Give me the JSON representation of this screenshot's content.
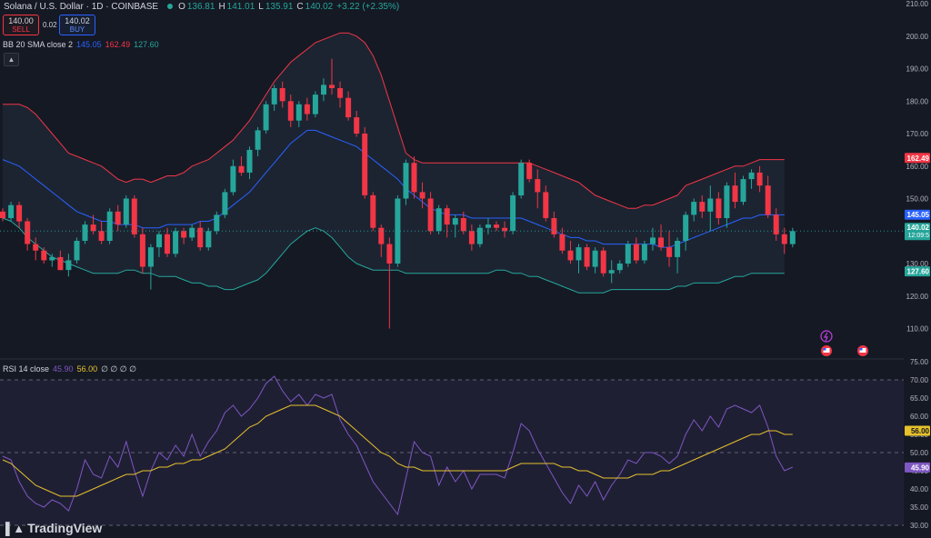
{
  "header": {
    "symbol_line": "Solana / U.S. Dollar · 1D · COINBASE",
    "o_label": "O",
    "o_value": "136.81",
    "h_label": "H",
    "h_value": "141.01",
    "l_label": "L",
    "l_value": "135.91",
    "c_label": "C",
    "c_value": "140.02",
    "change": "+3.22 (+2.35%)"
  },
  "trade": {
    "sell_price": "140.00",
    "sell_label": "SELL",
    "spread": "0.02",
    "buy_price": "140.02",
    "buy_label": "BUY"
  },
  "bb": {
    "label": "BB 20 SMA close 2",
    "basis": "145.05",
    "upper": "162.49",
    "lower": "127.60"
  },
  "rsi": {
    "label": "RSI 14 close",
    "value": "45.90",
    "ma": "56.00",
    "extra": "∅ ∅ ∅ ∅"
  },
  "logo": {
    "text": "TradingView"
  },
  "icons": [
    "flash-icon",
    "flag-icon"
  ],
  "colors": {
    "up": "#26a69a",
    "down": "#f23645",
    "basis": "#2962ff",
    "upper": "#f23645",
    "lower": "#26a69a",
    "rsi": "#7e57c2",
    "rsi_ma": "#e6c12b",
    "price": "#26a69a",
    "bg": "#151924"
  },
  "chart_data": [
    {
      "type": "candlestick",
      "title": "Solana / U.S. Dollar · 1D · COINBASE",
      "ylim": [
        105,
        210
      ],
      "y_ticks": [
        110,
        120,
        130,
        140,
        150,
        160,
        170,
        180,
        190,
        200,
        210
      ],
      "last_price": 140.02,
      "countdown": "12:09:5",
      "candles": [
        [
          146,
          147,
          143,
          144
        ],
        [
          144,
          149,
          143,
          148
        ],
        [
          148,
          149,
          141,
          143
        ],
        [
          143,
          144,
          134,
          136
        ],
        [
          136,
          138,
          131,
          134
        ],
        [
          134,
          135,
          130,
          131
        ],
        [
          131,
          133,
          129,
          132
        ],
        [
          132,
          134,
          128,
          128
        ],
        [
          128,
          133,
          126,
          131
        ],
        [
          131,
          138,
          130,
          137
        ],
        [
          137,
          143,
          136,
          142
        ],
        [
          142,
          145,
          139,
          140
        ],
        [
          140,
          143,
          136,
          137
        ],
        [
          137,
          147,
          136,
          146
        ],
        [
          146,
          148,
          140,
          142
        ],
        [
          142,
          151,
          141,
          150
        ],
        [
          150,
          151,
          138,
          139
        ],
        [
          139,
          141,
          127,
          129
        ],
        [
          129,
          136,
          122,
          135
        ],
        [
          135,
          140,
          132,
          139
        ],
        [
          139,
          141,
          132,
          133
        ],
        [
          133,
          141,
          132,
          140
        ],
        [
          140,
          141,
          136,
          138
        ],
        [
          138,
          142,
          137,
          141
        ],
        [
          141,
          143,
          134,
          135
        ],
        [
          135,
          141,
          134,
          140
        ],
        [
          140,
          146,
          139,
          145
        ],
        [
          145,
          153,
          144,
          152
        ],
        [
          152,
          162,
          151,
          160
        ],
        [
          160,
          163,
          157,
          158
        ],
        [
          158,
          166,
          156,
          165
        ],
        [
          165,
          172,
          163,
          171
        ],
        [
          171,
          180,
          170,
          179
        ],
        [
          179,
          185,
          177,
          184
        ],
        [
          184,
          186,
          178,
          180
        ],
        [
          180,
          182,
          172,
          174
        ],
        [
          174,
          180,
          172,
          179
        ],
        [
          179,
          181,
          174,
          176
        ],
        [
          176,
          183,
          175,
          182
        ],
        [
          182,
          187,
          180,
          185
        ],
        [
          185,
          193,
          182,
          184
        ],
        [
          184,
          186,
          178,
          181
        ],
        [
          181,
          183,
          174,
          175
        ],
        [
          175,
          177,
          169,
          170
        ],
        [
          170,
          172,
          150,
          151
        ],
        [
          151,
          152,
          140,
          141
        ],
        [
          141,
          142,
          132,
          136
        ],
        [
          136,
          138,
          110,
          130
        ],
        [
          130,
          151,
          129,
          150
        ],
        [
          150,
          162,
          148,
          161
        ],
        [
          161,
          163,
          150,
          152
        ],
        [
          152,
          155,
          147,
          150
        ],
        [
          150,
          152,
          139,
          140
        ],
        [
          140,
          148,
          139,
          147
        ],
        [
          147,
          148,
          138,
          142
        ],
        [
          142,
          145,
          138,
          144
        ],
        [
          144,
          146,
          139,
          140
        ],
        [
          140,
          142,
          134,
          136
        ],
        [
          136,
          142,
          135,
          141
        ],
        [
          141,
          144,
          139,
          142
        ],
        [
          142,
          143,
          140,
          141
        ],
        [
          141,
          143,
          138,
          140
        ],
        [
          140,
          152,
          139,
          151
        ],
        [
          151,
          162,
          150,
          161
        ],
        [
          161,
          162,
          155,
          156
        ],
        [
          156,
          159,
          147,
          152
        ],
        [
          152,
          154,
          143,
          144
        ],
        [
          144,
          146,
          138,
          139
        ],
        [
          139,
          141,
          133,
          134
        ],
        [
          134,
          137,
          130,
          131
        ],
        [
          131,
          136,
          127,
          135
        ],
        [
          135,
          136,
          128,
          129
        ],
        [
          129,
          135,
          127,
          134
        ],
        [
          134,
          135,
          126,
          127
        ],
        [
          127,
          131,
          124,
          128
        ],
        [
          128,
          131,
          127,
          130
        ],
        [
          130,
          137,
          129,
          136
        ],
        [
          136,
          138,
          130,
          131
        ],
        [
          131,
          137,
          130,
          136
        ],
        [
          136,
          141,
          134,
          138
        ],
        [
          138,
          142,
          134,
          135
        ],
        [
          135,
          140,
          129,
          132
        ],
        [
          132,
          138,
          127,
          137
        ],
        [
          137,
          146,
          134,
          145
        ],
        [
          145,
          150,
          143,
          149
        ],
        [
          149,
          151,
          144,
          146
        ],
        [
          146,
          154,
          140,
          150
        ],
        [
          150,
          152,
          142,
          144
        ],
        [
          144,
          155,
          141,
          154
        ],
        [
          154,
          158,
          147,
          149
        ],
        [
          149,
          157,
          148,
          156
        ],
        [
          156,
          159,
          153,
          158
        ],
        [
          158,
          160,
          152,
          154
        ],
        [
          154,
          157,
          144,
          145
        ],
        [
          145,
          147,
          137,
          139
        ],
        [
          139,
          141,
          133,
          136
        ],
        [
          136,
          141,
          135,
          140
        ]
      ],
      "series": [
        {
          "name": "upper",
          "values": [
            179,
            179,
            179,
            178,
            176,
            173,
            170,
            167,
            164,
            163,
            162,
            161,
            160,
            158,
            156,
            155,
            156,
            156,
            155,
            156,
            157,
            157,
            158,
            160,
            161,
            162,
            164,
            166,
            168,
            171,
            174,
            178,
            182,
            186,
            189,
            192,
            194,
            196,
            198,
            199,
            200,
            201,
            201,
            200,
            198,
            194,
            188,
            180,
            172,
            164,
            162,
            161,
            161,
            161,
            161,
            161,
            161,
            161,
            161,
            161,
            161,
            161,
            161,
            161,
            161,
            160,
            159,
            158,
            157,
            156,
            155,
            153,
            151,
            150,
            149,
            148,
            147,
            147,
            148,
            148,
            149,
            150,
            151,
            154,
            155,
            156,
            157,
            158,
            159,
            160,
            160,
            161,
            162,
            162,
            162,
            162
          ]
        },
        {
          "name": "basis",
          "values": [
            162,
            161,
            160,
            158,
            156,
            154,
            152,
            150,
            148,
            146,
            145,
            144,
            143,
            143,
            142,
            142,
            142,
            141,
            141,
            141,
            142,
            142,
            142,
            142,
            143,
            143,
            144,
            146,
            148,
            150,
            152,
            155,
            158,
            161,
            164,
            167,
            169,
            171,
            171,
            170,
            169,
            168,
            167,
            166,
            164,
            162,
            160,
            158,
            156,
            153,
            151,
            149,
            147,
            146,
            145,
            145,
            145,
            144,
            144,
            144,
            144,
            144,
            144,
            144,
            143,
            142,
            141,
            140,
            139,
            138,
            138,
            137,
            137,
            136,
            136,
            136,
            136,
            136,
            136,
            136,
            135,
            135,
            136,
            137,
            138,
            139,
            140,
            141,
            142,
            143,
            144,
            144,
            145,
            145,
            145,
            145
          ]
        },
        {
          "name": "lower",
          "values": [
            144,
            143,
            141,
            138,
            136,
            134,
            132,
            131,
            130,
            129,
            128,
            127,
            127,
            127,
            127,
            128,
            128,
            127,
            127,
            126,
            126,
            126,
            125,
            124,
            124,
            123,
            123,
            122,
            122,
            123,
            124,
            125,
            127,
            130,
            133,
            136,
            138,
            140,
            141,
            140,
            138,
            135,
            132,
            130,
            129,
            128,
            128,
            128,
            128,
            127,
            127,
            127,
            127,
            127,
            127,
            127,
            127,
            127,
            127,
            127,
            128,
            128,
            127,
            127,
            126,
            126,
            125,
            124,
            123,
            122,
            121,
            121,
            121,
            121,
            122,
            122,
            122,
            122,
            122,
            122,
            122,
            122,
            123,
            123,
            124,
            124,
            124,
            124,
            125,
            126,
            126,
            127,
            127,
            127,
            127,
            127
          ]
        }
      ]
    },
    {
      "type": "line",
      "title": "RSI 14 close",
      "ylim": [
        30,
        75
      ],
      "y_ticks": [
        30,
        35,
        40,
        45,
        50,
        55,
        60,
        65,
        70,
        75
      ],
      "series": [
        {
          "name": "RSI",
          "values": [
            49,
            48,
            42,
            38,
            36,
            35,
            37,
            36,
            34,
            40,
            48,
            44,
            43,
            49,
            46,
            53,
            45,
            38,
            45,
            50,
            48,
            52,
            49,
            55,
            49,
            53,
            56,
            61,
            63,
            60,
            62,
            65,
            69,
            71,
            67,
            64,
            66,
            63,
            66,
            65,
            66,
            59,
            55,
            52,
            47,
            42,
            39,
            36,
            33,
            43,
            53,
            50,
            49,
            41,
            46,
            42,
            45,
            40,
            44,
            44,
            44,
            43,
            50,
            58,
            56,
            51,
            47,
            43,
            39,
            36,
            41,
            38,
            42,
            37,
            41,
            44,
            48,
            47,
            50,
            50,
            49,
            47,
            49,
            55,
            59,
            56,
            60,
            57,
            62,
            63,
            62,
            61,
            63,
            57,
            49,
            45,
            46
          ]
        },
        {
          "name": "RSI-based MA",
          "values": [
            48,
            47,
            45,
            43,
            41,
            40,
            39,
            38,
            38,
            38,
            39,
            40,
            41,
            42,
            43,
            44,
            44,
            45,
            45,
            46,
            46,
            47,
            47,
            48,
            48,
            49,
            50,
            51,
            53,
            55,
            57,
            58,
            60,
            61,
            62,
            63,
            63,
            63,
            63,
            62,
            61,
            60,
            58,
            56,
            54,
            52,
            50,
            49,
            47,
            46,
            46,
            45,
            45,
            45,
            45,
            45,
            45,
            45,
            45,
            45,
            45,
            45,
            46,
            47,
            47,
            47,
            47,
            47,
            46,
            46,
            45,
            45,
            44,
            43,
            43,
            43,
            43,
            44,
            44,
            44,
            45,
            45,
            46,
            47,
            48,
            49,
            50,
            51,
            52,
            53,
            54,
            55,
            55,
            56,
            56,
            55,
            55
          ]
        }
      ]
    }
  ]
}
